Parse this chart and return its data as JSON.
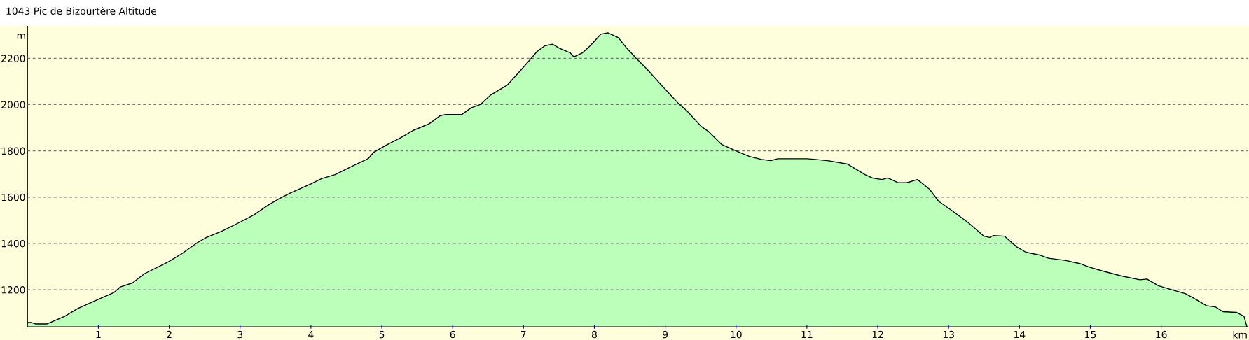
{
  "chart_data": {
    "type": "area",
    "title": "1043 Pic de Bizourtère Altitude",
    "xlabel": "km",
    "ylabel": "m",
    "x": [
      0,
      0.057,
      0.12,
      0.27,
      0.52,
      0.71,
      1.01,
      1.22,
      1.31,
      1.48,
      1.65,
      1.99,
      2.18,
      2.39,
      2.52,
      2.75,
      3.02,
      3.2,
      3.39,
      3.55,
      3.7,
      4.0,
      4.15,
      4.34,
      4.53,
      4.81,
      4.89,
      5.06,
      5.28,
      5.44,
      5.67,
      5.82,
      5.9,
      6.13,
      6.26,
      6.39,
      6.54,
      6.77,
      6.96,
      7.11,
      7.19,
      7.3,
      7.41,
      7.51,
      7.66,
      7.71,
      7.83,
      7.94,
      8.09,
      8.19,
      8.34,
      8.45,
      8.59,
      8.74,
      8.96,
      9.19,
      9.3,
      9.51,
      9.61,
      9.8,
      10.04,
      10.19,
      10.36,
      10.49,
      10.59,
      11.0,
      11.12,
      11.31,
      11.57,
      11.82,
      11.93,
      12.06,
      12.14,
      12.29,
      12.41,
      12.56,
      12.73,
      12.86,
      13.05,
      13.28,
      13.5,
      13.58,
      13.63,
      13.79,
      13.96,
      14.09,
      14.28,
      14.41,
      14.64,
      14.85,
      14.98,
      15.17,
      15.43,
      15.7,
      15.8,
      15.96,
      16.15,
      16.34,
      16.45,
      16.64,
      16.77,
      16.87,
      17.06,
      17.17,
      17.21
    ],
    "series": [
      {
        "color": "#bbffbb",
        "values": [
          1058,
          1058,
          1052,
          1052,
          1084,
          1119,
          1160,
          1188,
          1212,
          1229,
          1269,
          1321,
          1356,
          1402,
          1425,
          1454,
          1495,
          1524,
          1564,
          1593,
          1616,
          1657,
          1680,
          1697,
          1726,
          1767,
          1795,
          1824,
          1859,
          1888,
          1917,
          1951,
          1957,
          1957,
          1986,
          2000,
          2042,
          2084,
          2148,
          2200,
          2229,
          2254,
          2261,
          2243,
          2223,
          2206,
          2223,
          2254,
          2304,
          2310,
          2289,
          2246,
          2200,
          2154,
          2079,
          2004,
          1975,
          1905,
          1884,
          1827,
          1795,
          1776,
          1763,
          1758,
          1766,
          1766,
          1763,
          1757,
          1743,
          1697,
          1682,
          1676,
          1683,
          1662,
          1662,
          1676,
          1634,
          1582,
          1541,
          1489,
          1431,
          1426,
          1434,
          1431,
          1385,
          1362,
          1350,
          1336,
          1327,
          1313,
          1298,
          1281,
          1260,
          1243,
          1246,
          1217,
          1200,
          1183,
          1165,
          1131,
          1125,
          1105,
          1102,
          1085,
          1040
        ]
      }
    ],
    "xlim": [
      0,
      17.22
    ],
    "ylim": [
      1040,
      2340
    ],
    "xticks": [
      1,
      2,
      3,
      4,
      5,
      6,
      7,
      8,
      9,
      10,
      11,
      12,
      13,
      14,
      15,
      16
    ],
    "yticks": [
      1200,
      1400,
      1600,
      1800,
      2000,
      2200
    ],
    "grid": "y"
  }
}
